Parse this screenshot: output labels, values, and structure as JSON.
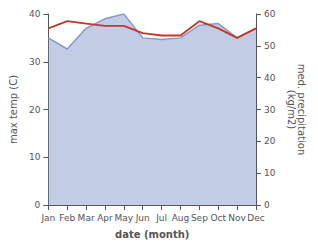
{
  "chart_data": {
    "type": "line",
    "xlabel": "date (month)",
    "ylabel": "max temp (C)",
    "y2label": "med. precipitation\n(kg/m2)",
    "categories": [
      "Jan",
      "Feb",
      "Mar",
      "Apr",
      "May",
      "Jun",
      "Jul",
      "Aug",
      "Sep",
      "Oct",
      "Nov",
      "Dec"
    ],
    "series": [
      {
        "type": "area",
        "axis": "y2",
        "color": "#8899cc",
        "values": [
          52.5,
          49.0,
          55.5,
          58.5,
          60.0,
          52.5,
          52.0,
          52.5,
          56.5,
          57.0,
          52.5,
          55.5
        ]
      },
      {
        "type": "line",
        "color": "#c0392b",
        "values": [
          37.0,
          38.5,
          38.0,
          37.5,
          37.5,
          36.0,
          35.5,
          35.5,
          38.5,
          37.0,
          35.0,
          37.0
        ]
      }
    ],
    "ylim": [
      0,
      40
    ],
    "yticks": [
      0,
      10,
      20,
      30,
      40
    ],
    "y2lim": [
      0,
      60
    ],
    "y2ticks": [
      0,
      10,
      20,
      30,
      40,
      50,
      60
    ],
    "grid": false
  }
}
